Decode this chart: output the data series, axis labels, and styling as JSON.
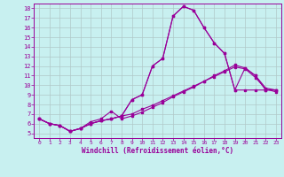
{
  "xlabel": "Windchill (Refroidissement éolien,°C)",
  "bg_color": "#c8f0f0",
  "line_color": "#990099",
  "grid_color": "#b0c8c8",
  "xlim": [
    -0.5,
    23.5
  ],
  "ylim": [
    4.5,
    18.5
  ],
  "xticks": [
    0,
    1,
    2,
    3,
    4,
    5,
    6,
    7,
    8,
    9,
    10,
    11,
    12,
    13,
    14,
    15,
    16,
    17,
    18,
    19,
    20,
    21,
    22,
    23
  ],
  "yticks": [
    5,
    6,
    7,
    8,
    9,
    10,
    11,
    12,
    13,
    14,
    15,
    16,
    17,
    18
  ],
  "series": [
    [
      6.5,
      6.0,
      5.8,
      5.2,
      5.5,
      6.0,
      6.3,
      6.5,
      6.8,
      8.5,
      9.0,
      12.0,
      12.8,
      17.2,
      18.2,
      17.8,
      16.0,
      14.4,
      13.3,
      9.5,
      9.5,
      9.5,
      9.5,
      9.5
    ],
    [
      6.5,
      6.0,
      5.8,
      5.2,
      5.5,
      6.0,
      6.3,
      6.5,
      6.8,
      8.5,
      9.0,
      12.0,
      12.8,
      17.2,
      18.2,
      17.8,
      16.0,
      14.4,
      13.3,
      9.5,
      11.8,
      11.0,
      9.5,
      9.5
    ],
    [
      6.5,
      6.0,
      5.8,
      5.2,
      5.5,
      6.2,
      6.5,
      7.3,
      6.5,
      6.8,
      7.2,
      7.7,
      8.2,
      8.8,
      9.3,
      9.8,
      10.4,
      11.0,
      11.5,
      12.1,
      11.8,
      11.0,
      9.7,
      9.5
    ],
    [
      6.5,
      6.0,
      5.8,
      5.2,
      5.5,
      6.0,
      6.3,
      6.5,
      6.8,
      7.0,
      7.5,
      7.9,
      8.4,
      8.9,
      9.4,
      9.9,
      10.4,
      10.9,
      11.4,
      11.9,
      11.7,
      10.8,
      9.6,
      9.3
    ]
  ]
}
